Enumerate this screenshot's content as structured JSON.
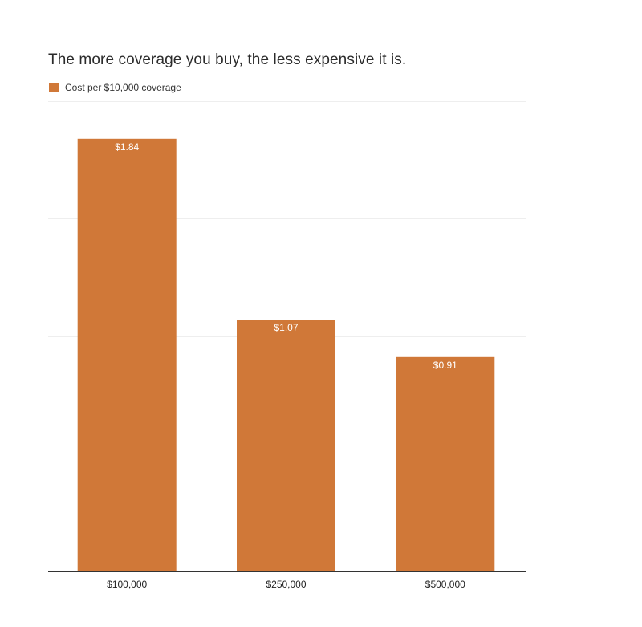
{
  "chart_data": {
    "type": "bar",
    "title": "The more coverage you buy, the less expensive it is.",
    "categories": [
      "$100,000",
      "$250,000",
      "$500,000"
    ],
    "series": [
      {
        "name": "Cost per $10,000 coverage",
        "values": [
          1.84,
          1.07,
          0.91
        ],
        "value_labels": [
          "$1.84",
          "$1.07",
          "$0.91"
        ],
        "color": "#d07838"
      }
    ],
    "ylim": [
      0,
      2
    ],
    "grid": true,
    "legend": "top-left"
  }
}
